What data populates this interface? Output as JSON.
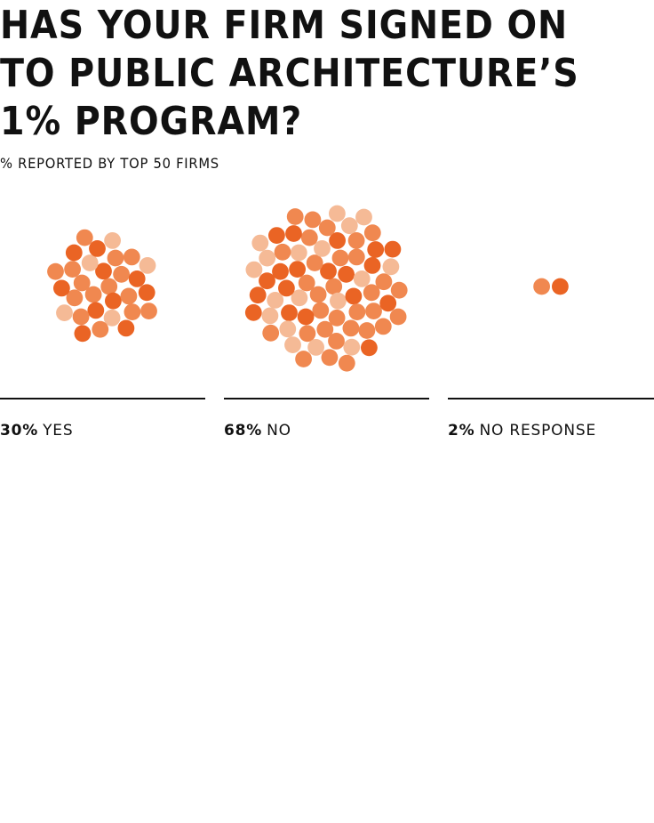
{
  "header": {
    "title": "HAS YOUR FIRM SIGNED ON\nTO PUBLIC ARCHITECTURE’S\n1% PROGRAM?",
    "subtitle": "% REPORTED BY TOP 50 FIRMS"
  },
  "colors": {
    "text": "#111111",
    "dot_dark": "#EA6424",
    "dot_mid": "#F08850",
    "dot_light": "#F5BA96"
  },
  "chart_data": {
    "type": "bubble-cluster",
    "title": "HAS YOUR FIRM SIGNED ON TO PUBLIC ARCHITECTURE’S 1% PROGRAM?",
    "subtitle": "% REPORTED BY TOP 50 FIRMS",
    "unit": "%",
    "categories": [
      {
        "percent": "30%",
        "label": "YES",
        "value": 30
      },
      {
        "percent": "68%",
        "label": "NO",
        "value": 68
      },
      {
        "percent": "2%",
        "label": "NO RESPONSE",
        "value": 2
      }
    ],
    "dots_per_percent": 1
  }
}
